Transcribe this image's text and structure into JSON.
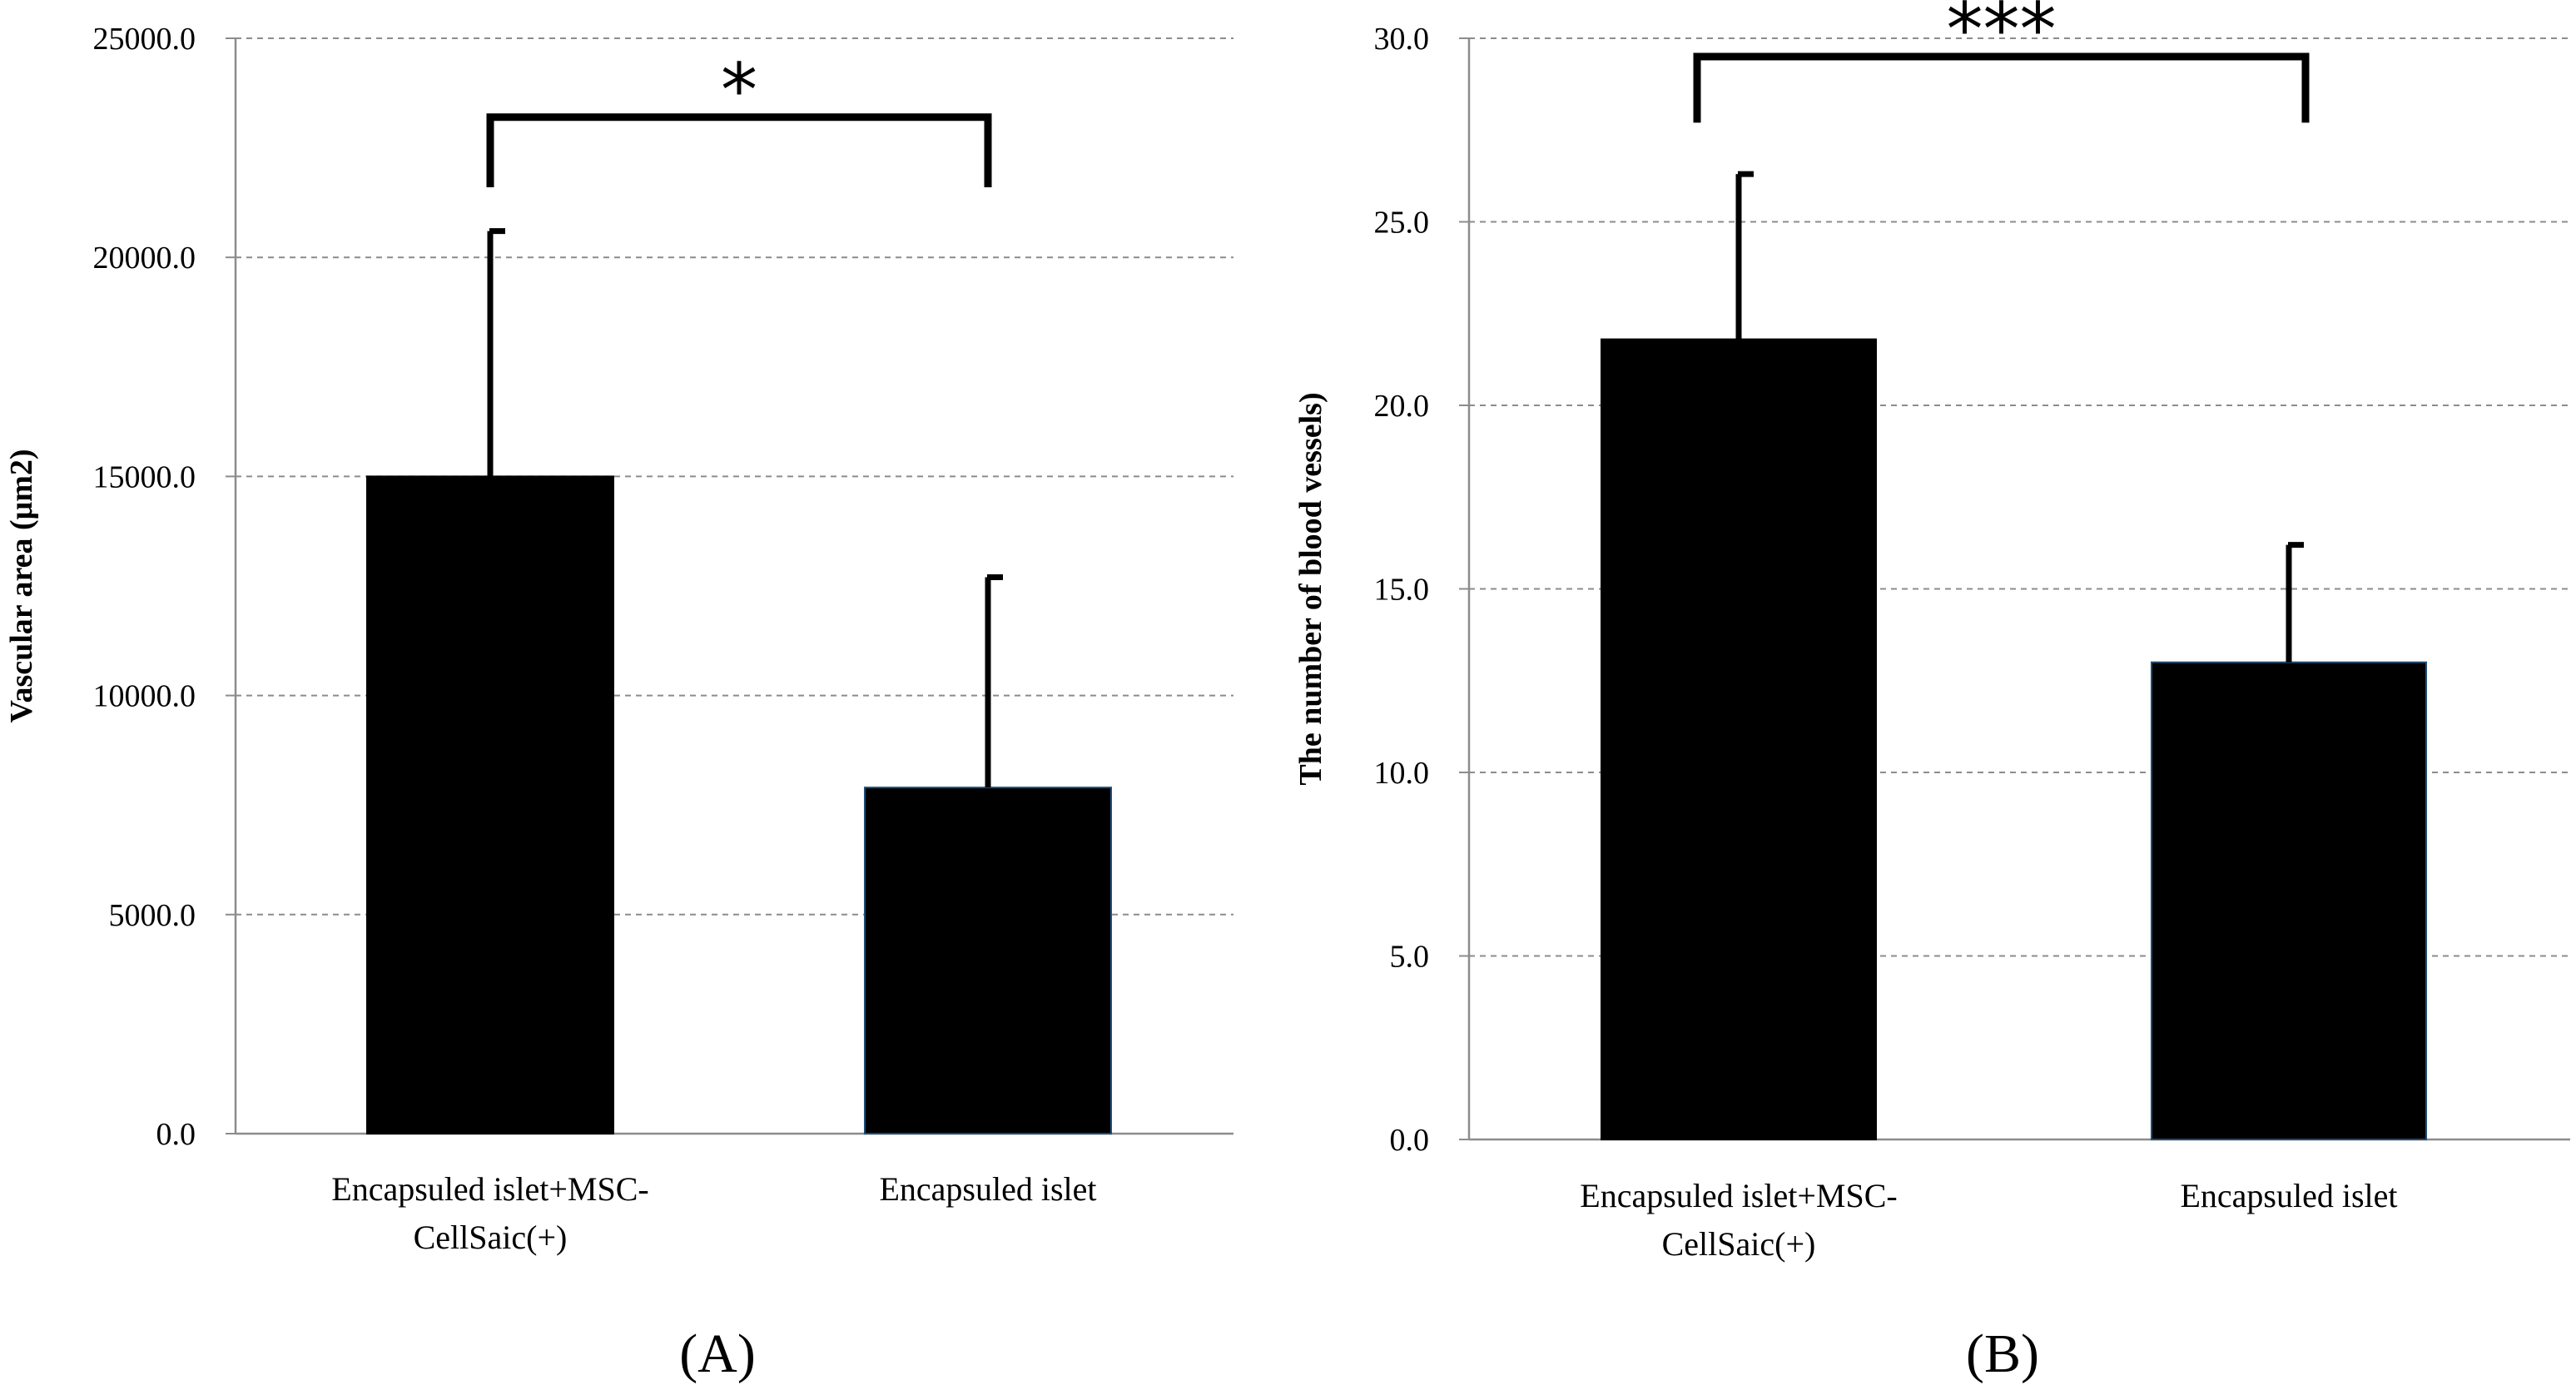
{
  "chart_data": [
    {
      "panel_label": "(A)",
      "type": "bar",
      "categories": [
        [
          "Encapsuled islet+MSC-",
          "CellSaic(+)"
        ],
        [
          "Encapsuled islet"
        ]
      ],
      "values": [
        15000.0,
        7900.0
      ],
      "error_upper": [
        20600.0,
        12700.0
      ],
      "ylabel": "Vascular area (μm2)",
      "xlabel": "",
      "ylim": [
        0,
        25000
      ],
      "yticks": [
        0,
        5000,
        10000,
        15000,
        20000,
        25000
      ],
      "tick_labels": [
        "0.0",
        "5000.0",
        "10000.0",
        "15000.0",
        "20000.0",
        "25000.0"
      ],
      "grid": true,
      "significance": {
        "label": "*",
        "between": [
          0,
          1
        ],
        "bracket_top": 23200,
        "bracket_bottom": 21600
      },
      "bar_color": "#000000",
      "edge_colors": [
        "#000000",
        "#1f4e79"
      ]
    },
    {
      "panel_label": "(B)",
      "type": "bar",
      "categories": [
        [
          "Encapsuled islet+MSC-",
          "CellSaic(+)"
        ],
        [
          "Encapsuled islet"
        ]
      ],
      "values": [
        21.8,
        13.0
      ],
      "error_upper": [
        26.3,
        16.2
      ],
      "ylabel": "The number of blood vessels)",
      "xlabel": "",
      "ylim": [
        0,
        30
      ],
      "yticks": [
        0,
        5,
        10,
        15,
        20,
        25,
        30
      ],
      "tick_labels": [
        "0.0",
        "5.0",
        "10.0",
        "15.0",
        "20.0",
        "25.0",
        "30.0"
      ],
      "grid": true,
      "significance": {
        "label": "***",
        "between": [
          0,
          1
        ],
        "bracket_top": 29.5,
        "bracket_bottom": 27.7
      },
      "bar_color": "#000000",
      "edge_colors": [
        "#000000",
        "#1f4e79"
      ]
    }
  ]
}
